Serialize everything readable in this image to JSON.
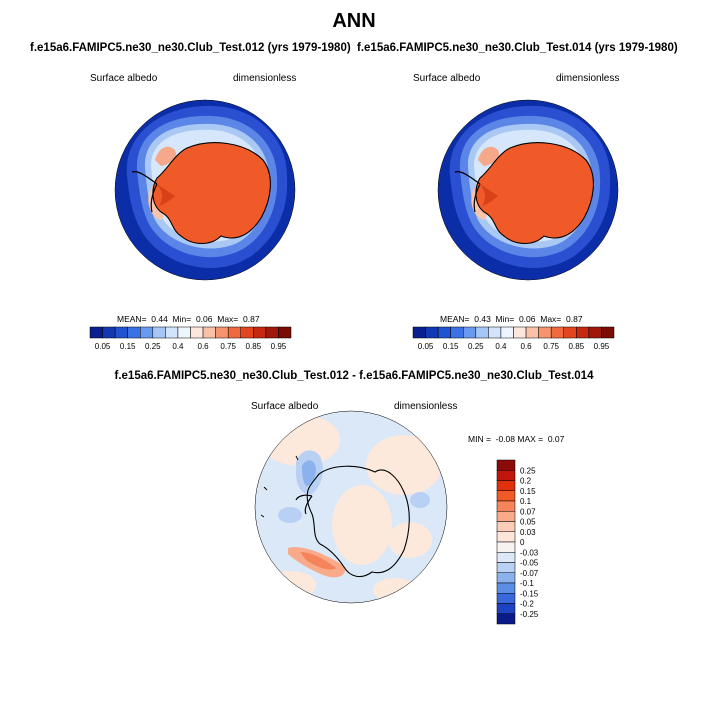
{
  "figure": {
    "title": "ANN",
    "panel_top_left": {
      "case_title": "f.e15a6.FAMIPC5.ne30_ne30.Club_Test.012 (yrs 1979-1980)",
      "variable": "Surface albedo",
      "units": "dimensionless",
      "mean_label": "MEAN=",
      "mean": "0.44",
      "min_label": "Min=",
      "min": "0.06",
      "max_label": "Max=",
      "max": "0.87"
    },
    "panel_top_right": {
      "case_title": "f.e15a6.FAMIPC5.ne30_ne30.Club_Test.014 (yrs 1979-1980)",
      "variable": "Surface albedo",
      "units": "dimensionless",
      "mean_label": "MEAN=",
      "mean": "0.43",
      "min_label": "Min=",
      "min": "0.06",
      "max_label": "Max=",
      "max": "0.87"
    },
    "panel_diff": {
      "case_title": "f.e15a6.FAMIPC5.ne30_ne30.Club_Test.012 - f.e15a6.FAMIPC5.ne30_ne30.Club_Test.014",
      "variable": "Surface albedo",
      "units": "dimensionless",
      "minmax_label": "MIN =  -0.08 MAX =  0.07"
    },
    "colorbar_abs": {
      "tick_labels": [
        "0.05",
        "0.15",
        "0.25",
        "0.4",
        "0.6",
        "0.75",
        "0.85",
        "0.95"
      ],
      "colors": [
        "#0a1f8f",
        "#1238b4",
        "#2052d2",
        "#3a72e6",
        "#6a9af0",
        "#a6c6f6",
        "#d2e4fb",
        "#eef5fe",
        "#fde6dc",
        "#f9c2a8",
        "#f5946e",
        "#ef6a3e",
        "#e3451e",
        "#c52a10",
        "#a0180a",
        "#7a0c04"
      ]
    },
    "colorbar_diff": {
      "tick_labels": [
        "0.25",
        "0.2",
        "0.15",
        "0.1",
        "0.07",
        "0.05",
        "0.03",
        "0",
        "-0.03",
        "-0.05",
        "-0.07",
        "-0.1",
        "-0.15",
        "-0.2",
        "-0.25"
      ],
      "colors": [
        "#8b0a0a",
        "#c0160c",
        "#e0300c",
        "#f05a26",
        "#f6845a",
        "#f9aa8a",
        "#fbcdb8",
        "#fde6d8",
        "#f8f3f0",
        "#dce8f8",
        "#b8d0f4",
        "#8cb2ee",
        "#5c8ee6",
        "#3868dc",
        "#1e42c4",
        "#0a1a8a"
      ]
    }
  }
}
